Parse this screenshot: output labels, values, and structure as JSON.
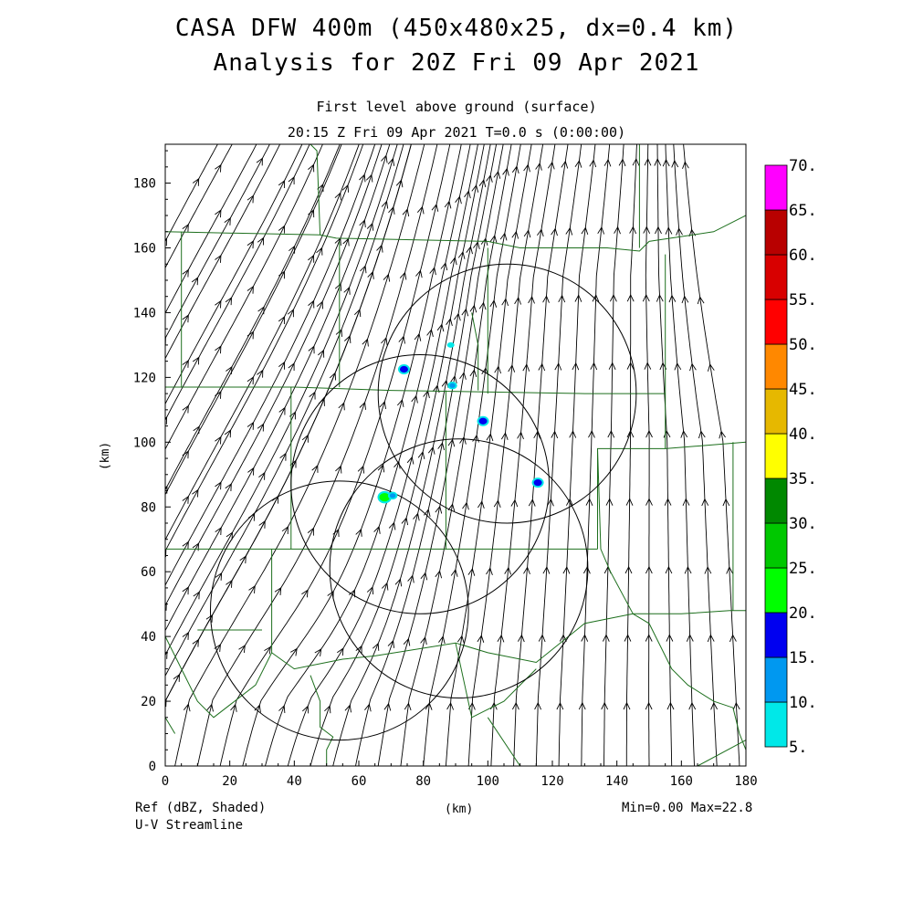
{
  "title_line1": "CASA DFW 400m (450x480x25, dx=0.4 km)",
  "title_line2": "Analysis for 20Z Fri 09 Apr 2021",
  "subtitle_line1": "First level above ground (surface)",
  "subtitle_line2": "20:15 Z Fri 09 Apr 2021   T=0.0 s (0:00:00)",
  "x_axis_label": "(km)",
  "y_axis_label": "(km)",
  "x_ticks": [
    "0",
    "20",
    "40",
    "60",
    "80",
    "100",
    "120",
    "140",
    "160",
    "180"
  ],
  "y_ticks": [
    "0",
    "20",
    "40",
    "60",
    "80",
    "100",
    "120",
    "140",
    "160",
    "180"
  ],
  "footer_left_1": "Ref (dBZ, Shaded)",
  "footer_left_2": "U-V Streamline",
  "footer_right": "Min=0.00 Max=22.8",
  "colorbar": {
    "labels": [
      "5.",
      "10.",
      "15.",
      "20.",
      "25.",
      "30.",
      "35.",
      "40.",
      "45.",
      "50.",
      "55.",
      "60.",
      "65.",
      "70."
    ],
    "colors": [
      "#00e8e8",
      "#0098f0",
      "#0000f0",
      "#00ff00",
      "#00c800",
      "#008800",
      "#ffff00",
      "#e6b800",
      "#ff8800",
      "#ff0000",
      "#d80000",
      "#b80000",
      "#ff00ff"
    ]
  },
  "map_data": {
    "x_range_km": [
      0,
      180
    ],
    "y_range_km": [
      0,
      192
    ],
    "radar_rings_km": [
      {
        "cx": 54,
        "cy": 48,
        "r": 40
      },
      {
        "cx": 79,
        "cy": 87,
        "r": 40
      },
      {
        "cx": 106,
        "cy": 115,
        "r": 40
      },
      {
        "cx": 91,
        "cy": 61,
        "r": 40
      }
    ],
    "echoes": [
      {
        "x": 74,
        "y": 122.5,
        "dbz": 15
      },
      {
        "x": 89,
        "y": 117.5,
        "dbz": 10
      },
      {
        "x": 98.5,
        "y": 106.5,
        "dbz": 15
      },
      {
        "x": 115.5,
        "y": 87.5,
        "dbz": 15
      },
      {
        "x": 68,
        "y": 83,
        "dbz": 20
      },
      {
        "x": 70.5,
        "y": 83.5,
        "dbz": 10
      },
      {
        "x": 88.5,
        "y": 130,
        "dbz": 5
      }
    ]
  }
}
